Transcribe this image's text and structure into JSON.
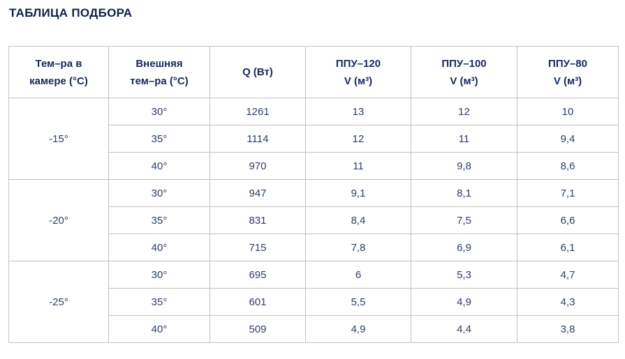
{
  "page_title": "ТАБЛИЦА ПОДБОРА",
  "colors": {
    "title_text": "#0f2149",
    "header_text": "#16295b",
    "cell_text": "#2c3f63",
    "border": "#c2c2c2",
    "background": "#ffffff"
  },
  "table": {
    "column_headers": [
      [
        "Тем–ра в",
        "камере (°С)"
      ],
      [
        "Внешняя",
        "тем–ра (°С)"
      ],
      [
        "Q (Вт)"
      ],
      [
        "ППУ–120",
        "V (м³)"
      ],
      [
        "ППУ–100",
        "V (м³)"
      ],
      [
        "ППУ–80",
        "V (м³)"
      ]
    ],
    "groups": [
      {
        "camera_temp": "-15°",
        "rows": [
          {
            "external_temp": "30°",
            "q": "1261",
            "ppu_120": "13",
            "ppu_100": "12",
            "ppu_80": "10"
          },
          {
            "external_temp": "35°",
            "q": "1114",
            "ppu_120": "12",
            "ppu_100": "11",
            "ppu_80": "9,4"
          },
          {
            "external_temp": "40°",
            "q": "970",
            "ppu_120": "11",
            "ppu_100": "9,8",
            "ppu_80": "8,6"
          }
        ]
      },
      {
        "camera_temp": "-20°",
        "rows": [
          {
            "external_temp": "30°",
            "q": "947",
            "ppu_120": "9,1",
            "ppu_100": "8,1",
            "ppu_80": "7,1"
          },
          {
            "external_temp": "35°",
            "q": "831",
            "ppu_120": "8,4",
            "ppu_100": "7,5",
            "ppu_80": "6,6"
          },
          {
            "external_temp": "40°",
            "q": "715",
            "ppu_120": "7,8",
            "ppu_100": "6,9",
            "ppu_80": "6,1"
          }
        ]
      },
      {
        "camera_temp": "-25°",
        "rows": [
          {
            "external_temp": "30°",
            "q": "695",
            "ppu_120": "6",
            "ppu_100": "5,3",
            "ppu_80": "4,7"
          },
          {
            "external_temp": "35°",
            "q": "601",
            "ppu_120": "5,5",
            "ppu_100": "4,9",
            "ppu_80": "4,3"
          },
          {
            "external_temp": "40°",
            "q": "509",
            "ppu_120": "4,9",
            "ppu_100": "4,4",
            "ppu_80": "3,8"
          }
        ]
      }
    ]
  },
  "chart_data": {
    "type": "table",
    "title": "ТАБЛИЦА ПОДБОРА",
    "columns": [
      "Тем–ра в камере (°С)",
      "Внешняя тем–ра (°С)",
      "Q (Вт)",
      "ППУ–120 V (м³)",
      "ППУ–100 V (м³)",
      "ППУ–80 V (м³)"
    ],
    "rows": [
      [
        "-15°",
        "30°",
        1261,
        13,
        12,
        10
      ],
      [
        "-15°",
        "35°",
        1114,
        12,
        11,
        9.4
      ],
      [
        "-15°",
        "40°",
        970,
        11,
        9.8,
        8.6
      ],
      [
        "-20°",
        "30°",
        947,
        9.1,
        8.1,
        7.1
      ],
      [
        "-20°",
        "35°",
        831,
        8.4,
        7.5,
        6.6
      ],
      [
        "-20°",
        "40°",
        715,
        7.8,
        6.9,
        6.1
      ],
      [
        "-25°",
        "30°",
        695,
        6,
        5.3,
        4.7
      ],
      [
        "-25°",
        "35°",
        601,
        5.5,
        4.9,
        4.3
      ],
      [
        "-25°",
        "40°",
        509,
        4.9,
        4.4,
        3.8
      ]
    ]
  }
}
